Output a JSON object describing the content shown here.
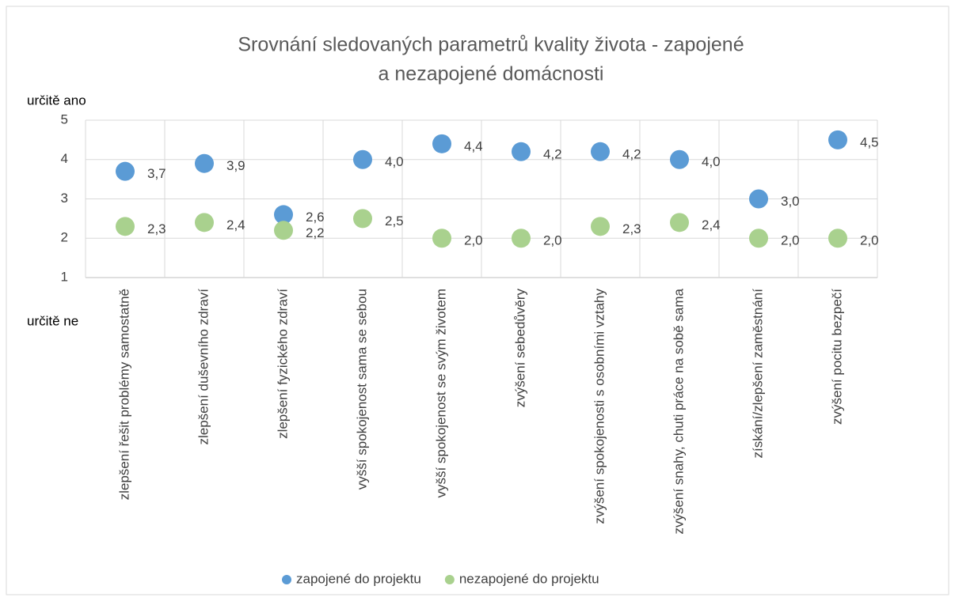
{
  "chart_data": {
    "type": "dot",
    "title": [
      "Srovnání sledovaných parametrů kvality života - zapojené",
      "a nezapojené domácnosti"
    ],
    "annotations": [
      "určitě ano",
      "určitě ne"
    ],
    "categories": [
      "zlepšení řešit problémy samostatně",
      "zlepšení duševního zdraví",
      "zlepšení fyzického zdraví",
      "vyšší spokojenost sama se sebou",
      "vyšší spokojenost se svým životem",
      "zvýšení sebedůvěry",
      "zvýšení spokojenosti s osobními vztahy",
      "zvýšení snahy, chuti práce na sobě sama",
      "získání/zlepšení zaměstnání",
      "zvýšení pocitu bezpečí"
    ],
    "series": [
      {
        "name": "zapojené do projektu",
        "color": "#5b9bd5",
        "values": [
          3.7,
          3.9,
          2.6,
          4.0,
          4.4,
          4.2,
          4.2,
          4.0,
          3.0,
          4.5
        ],
        "value_labels": [
          "3,7",
          "3,9",
          "2,6",
          "4,0",
          "4,4",
          "4,2",
          "4,2",
          "4,0",
          "3,0",
          "4,5"
        ]
      },
      {
        "name": "nezapojené do projektu",
        "color": "#a9d18e",
        "values": [
          2.3,
          2.4,
          2.2,
          2.5,
          2.0,
          2.0,
          2.3,
          2.4,
          2.0,
          2.0
        ],
        "value_labels": [
          "2,3",
          "2,4",
          "2,2",
          "2,5",
          "2,0",
          "2,0",
          "2,3",
          "2,4",
          "2,0",
          "2,0"
        ]
      }
    ],
    "ylim": [
      1,
      5
    ],
    "yticks": [
      1,
      2,
      3,
      4,
      5
    ],
    "grid": true,
    "legend": "bottom"
  }
}
